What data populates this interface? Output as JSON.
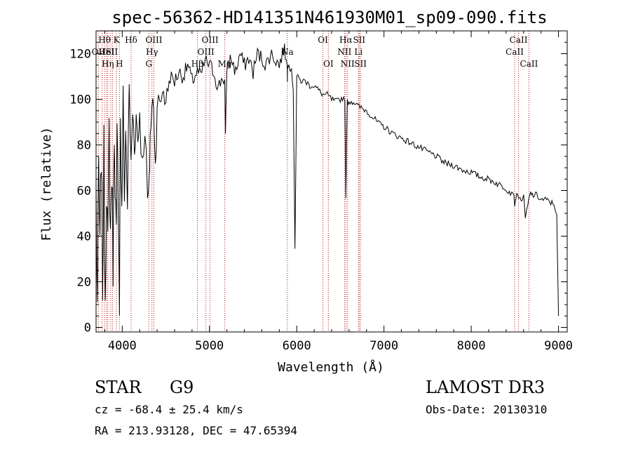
{
  "chart_data": {
    "type": "line",
    "title": "spec-56362-HD141351N461930M01_sp09-090.fits",
    "xlabel": "Wavelength (Å)",
    "ylabel": "Flux (relative)",
    "xlim": [
      3700,
      9100
    ],
    "ylim": [
      -2,
      130
    ],
    "x_ticks": [
      4000,
      5000,
      6000,
      7000,
      8000,
      9000
    ],
    "x_tick_labels": [
      "4000",
      "5000",
      "6000",
      "7000",
      "8000",
      "9000"
    ],
    "y_ticks": [
      0,
      20,
      40,
      60,
      80,
      100,
      120
    ],
    "y_tick_labels": [
      "0",
      "20",
      "40",
      "60",
      "80",
      "100",
      "120"
    ],
    "grid": false,
    "series": [
      {
        "name": "flux",
        "x": [
          3700,
          3715,
          3730,
          3745,
          3760,
          3775,
          3790,
          3805,
          3820,
          3835,
          3850,
          3865,
          3880,
          3895,
          3910,
          3925,
          3933,
          3940,
          3955,
          3968,
          3980,
          3995,
          4010,
          4025,
          4040,
          4060,
          4080,
          4101,
          4120,
          4140,
          4160,
          4180,
          4200,
          4230,
          4260,
          4290,
          4310,
          4320,
          4340,
          4360,
          4380,
          4400,
          4430,
          4460,
          4500,
          4550,
          4600,
          4650,
          4700,
          4750,
          4800,
          4861,
          4900,
          4950,
          5000,
          5050,
          5100,
          5150,
          5175,
          5183,
          5200,
          5250,
          5300,
          5350,
          5400,
          5450,
          5500,
          5550,
          5600,
          5650,
          5700,
          5750,
          5800,
          5850,
          5870,
          5890,
          5893,
          5896,
          5900,
          5910,
          5940,
          5960,
          5980,
          6000,
          6050,
          6100,
          6150,
          6200,
          6250,
          6300,
          6350,
          6400,
          6450,
          6500,
          6550,
          6563,
          6580,
          6600,
          6650,
          6700,
          6750,
          6800,
          6850,
          6900,
          6950,
          7000,
          7100,
          7200,
          7300,
          7400,
          7500,
          7600,
          7700,
          7800,
          7900,
          8000,
          8100,
          8200,
          8300,
          8400,
          8450,
          8480,
          8498,
          8510,
          8542,
          8560,
          8600,
          8620,
          8662,
          8680,
          8700,
          8750,
          8800,
          8850,
          8900,
          8950,
          8980,
          9000
        ],
        "y": [
          60,
          10,
          70,
          30,
          80,
          20,
          75,
          15,
          65,
          30,
          85,
          40,
          70,
          30,
          90,
          50,
          35,
          80,
          60,
          15,
          95,
          45,
          100,
          60,
          85,
          55,
          105,
          70,
          95,
          80,
          92,
          82,
          95,
          70,
          90,
          55,
          60,
          85,
          95,
          100,
          70,
          100,
          95,
          105,
          100,
          110,
          108,
          112,
          110,
          115,
          108,
          112,
          110,
          117,
          115,
          112,
          105,
          110,
          108,
          82,
          115,
          118,
          112,
          120,
          115,
          118,
          112,
          120,
          118,
          115,
          120,
          118,
          115,
          122,
          120,
          118,
          108,
          117,
          116,
          115,
          112,
          105,
          35,
          110,
          108,
          108,
          106,
          106,
          104,
          102,
          102,
          100,
          99,
          100,
          101,
          58,
          99,
          99,
          99,
          97,
          96,
          95,
          93,
          91,
          89,
          88,
          85,
          83,
          81,
          79,
          77,
          75,
          72,
          71,
          69,
          68,
          66,
          65,
          63,
          61,
          59,
          60,
          54,
          57,
          58,
          56,
          57,
          48,
          56,
          59,
          58,
          58,
          56,
          56,
          55,
          54,
          50,
          5
        ]
      }
    ],
    "line_labels": [
      {
        "label": "Hθ",
        "x": 3798
      },
      {
        "label": "OII",
        "x": 3727
      },
      {
        "label": "HeI",
        "x": 3820
      },
      {
        "label": "Hη",
        "x": 3835
      },
      {
        "label": "K",
        "x": 3934
      },
      {
        "label": "H",
        "x": 3968
      },
      {
        "label": "SII",
        "x": 3880
      },
      {
        "label": "Hδ",
        "x": 4102
      },
      {
        "label": "OIII",
        "x": 4363
      },
      {
        "label": "Hγ",
        "x": 4341
      },
      {
        "label": "G",
        "x": 4305
      },
      {
        "label": "OIII",
        "x": 5007
      },
      {
        "label": "OIII",
        "x": 4959
      },
      {
        "label": "Hβ",
        "x": 4861
      },
      {
        "label": "Mg",
        "x": 5175
      },
      {
        "label": "Na",
        "x": 5893
      },
      {
        "label": "OI",
        "x": 6300
      },
      {
        "label": "OI",
        "x": 6363
      },
      {
        "label": "Hα",
        "x": 6563
      },
      {
        "label": "NII",
        "x": 6548
      },
      {
        "label": "NII",
        "x": 6583
      },
      {
        "label": "SII",
        "x": 6716
      },
      {
        "label": "Li",
        "x": 6708
      },
      {
        "label": "SII",
        "x": 6731
      },
      {
        "label": "CaII",
        "x": 8542
      },
      {
        "label": "CaII",
        "x": 8498
      },
      {
        "label": "CaII",
        "x": 8662
      }
    ],
    "line_markers_x": [
      3727,
      3770,
      3798,
      3820,
      3835,
      3869,
      3889,
      3934,
      3968,
      4102,
      4305,
      4341,
      4363,
      4861,
      4959,
      5007,
      5175,
      5893,
      6300,
      6363,
      6548,
      6563,
      6583,
      6708,
      6716,
      6731,
      8498,
      8542,
      8662
    ]
  },
  "info": {
    "object_class": "STAR",
    "subclass": "G9",
    "survey": "LAMOST DR3",
    "redshift": "cz = -68.4 ± 25.4 km/s",
    "obs_date": "Obs-Date: 20130310",
    "coords": "RA = 213.93128, DEC =  47.65394"
  }
}
